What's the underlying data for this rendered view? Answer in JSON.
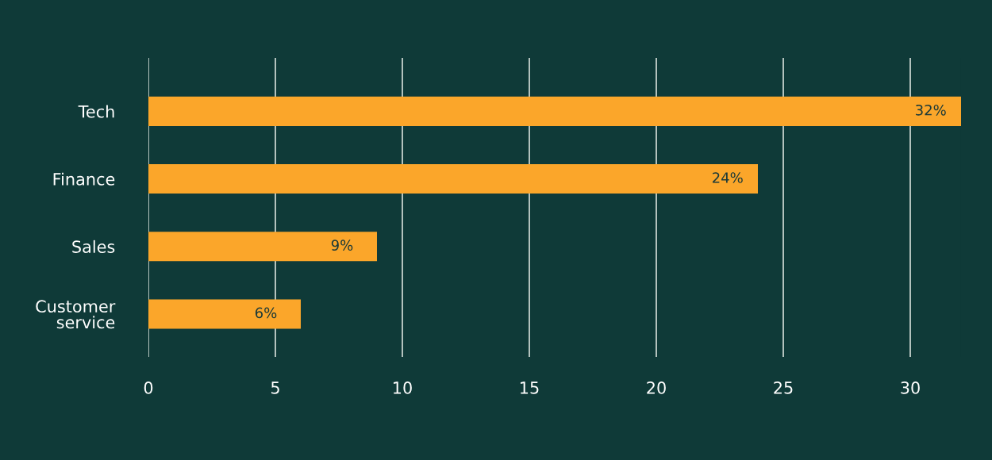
{
  "chart_data": {
    "type": "bar",
    "orientation": "horizontal",
    "categories": [
      "Tech",
      "Finance",
      "Sales",
      "Customer\nservice"
    ],
    "values": [
      32,
      24,
      9,
      6
    ],
    "value_labels": [
      "32%",
      "24%",
      "9%",
      "6%"
    ],
    "color": "#fba62a",
    "xlim": [
      0,
      32
    ],
    "xticks": [
      0,
      5,
      10,
      15,
      20,
      25,
      30
    ],
    "grid": "x",
    "legend": false
  }
}
